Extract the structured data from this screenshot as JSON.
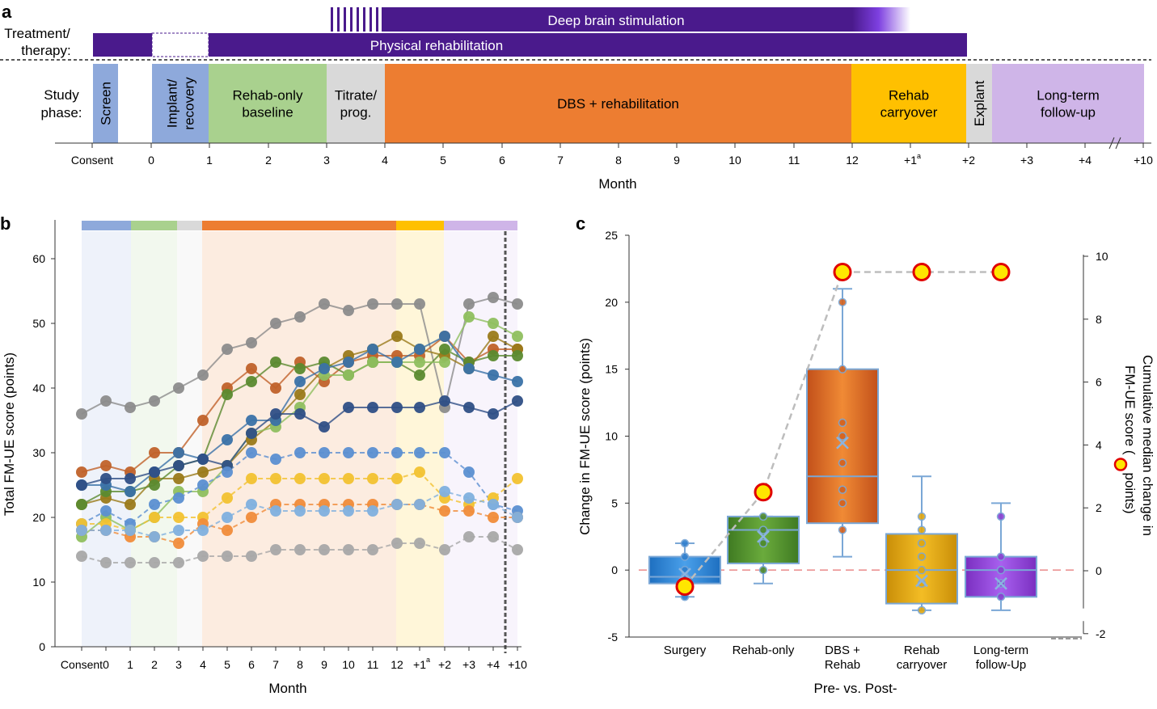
{
  "panel_labels": {
    "a": "a",
    "b": "b",
    "c": "c"
  },
  "colors": {
    "purple_dark": "#4a1a8c",
    "screen": "#8ea9db",
    "implant": "#8ea9db",
    "rehab_only": "#a9d18e",
    "titrate": "#d9d9d9",
    "dbs": "#ed7d31",
    "carryover": "#ffc000",
    "explant": "#d9d9d9",
    "followup": "#cfb5e8",
    "median_marker_fill": "#ffe600",
    "median_marker_stroke": "#e00000",
    "zero_line": "#e98a8a"
  },
  "panel_a": {
    "treatment_label_1": "Treatment/",
    "treatment_label_2": "therapy:",
    "bar_dbs": "Deep brain stimulation",
    "bar_rehab": "Physical rehabilitation",
    "phase_label_1": "Study",
    "phase_label_2": "phase:",
    "phases": [
      {
        "lines": [
          "Screen"
        ],
        "vertical": true
      },
      {
        "lines": [
          "Implant/",
          "recovery"
        ],
        "vertical": true
      },
      {
        "lines": [
          "Rehab-only",
          "baseline"
        ],
        "vertical": false
      },
      {
        "lines": [
          "Titrate/",
          "prog."
        ],
        "vertical": false
      },
      {
        "lines": [
          "DBS + rehabilitation"
        ],
        "vertical": false
      },
      {
        "lines": [
          "Rehab",
          "carryover"
        ],
        "vertical": false
      },
      {
        "lines": [
          "Explant"
        ],
        "vertical": true
      },
      {
        "lines": [
          "Long-term",
          "follow-up"
        ],
        "vertical": false
      }
    ],
    "ticks": [
      "Consent",
      "0",
      "1",
      "2",
      "3",
      "4",
      "5",
      "6",
      "7",
      "8",
      "9",
      "10",
      "11",
      "12",
      "+1",
      "+2",
      "+3",
      "+4",
      "+10"
    ],
    "tick_superscript": "a",
    "xlabel": "Month"
  },
  "chart_data": [
    {
      "type": "line",
      "panel": "b",
      "xlabel": "Month",
      "ylabel": "Total FM-UE score (points)",
      "ylim": [
        0,
        65
      ],
      "yticks": [
        "0",
        "10",
        "20",
        "30",
        "40",
        "50",
        "60"
      ],
      "categories": [
        "Consent",
        "0",
        "1",
        "2",
        "3",
        "4",
        "5",
        "6",
        "7",
        "8",
        "9",
        "10",
        "11",
        "12",
        "+1",
        "+2",
        "+3",
        "+4",
        "+10"
      ],
      "tick_superscript": "a",
      "grid": false,
      "series": [
        {
          "color": "#8c8c8c",
          "dashed": false,
          "values": [
            36,
            38,
            37,
            38,
            40,
            42,
            46,
            47,
            50,
            51,
            53,
            52,
            53,
            53,
            53,
            37,
            53,
            54,
            53
          ]
        },
        {
          "color": "#c0622a",
          "dashed": false,
          "values": [
            27,
            28,
            27,
            30,
            30,
            35,
            40,
            43,
            40,
            44,
            41,
            44,
            45,
            45,
            45,
            48,
            44,
            46,
            46
          ]
        },
        {
          "color": "#9a7a1a",
          "dashed": false,
          "values": [
            22,
            23,
            22,
            26,
            26,
            27,
            28,
            32,
            35,
            39,
            43,
            45,
            46,
            48,
            46,
            45,
            43,
            48,
            46
          ]
        },
        {
          "color": "#5b8a2f",
          "dashed": false,
          "values": [
            22,
            24,
            24,
            25,
            28,
            29,
            39,
            41,
            44,
            43,
            44,
            42,
            44,
            44,
            42,
            46,
            44,
            45,
            45
          ]
        },
        {
          "color": "#8fbf5f",
          "dashed": false,
          "values": [
            17,
            20,
            18,
            20,
            24,
            24,
            28,
            33,
            34,
            37,
            42,
            42,
            44,
            44,
            44,
            44,
            51,
            50,
            48
          ]
        },
        {
          "color": "#3a72a8",
          "dashed": false,
          "values": [
            25,
            25,
            24,
            27,
            30,
            29,
            32,
            35,
            35,
            41,
            43,
            44,
            46,
            44,
            46,
            48,
            43,
            42,
            41
          ]
        },
        {
          "color": "#2f4f86",
          "dashed": false,
          "values": [
            25,
            26,
            26,
            27,
            28,
            29,
            28,
            33,
            36,
            36,
            34,
            37,
            37,
            37,
            37,
            38,
            37,
            36,
            38
          ]
        },
        {
          "color": "#5b8fd1",
          "dashed": true,
          "values": [
            19,
            21,
            19,
            22,
            23,
            25,
            27,
            30,
            29,
            30,
            30,
            30,
            30,
            30,
            30,
            30,
            27,
            22,
            21
          ]
        },
        {
          "color": "#f2c230",
          "dashed": true,
          "values": [
            19,
            19,
            18,
            20,
            20,
            20,
            23,
            26,
            26,
            26,
            26,
            26,
            26,
            26,
            27,
            23,
            22,
            23,
            26
          ]
        },
        {
          "color": "#f08c3a",
          "dashed": true,
          "values": [
            18,
            18,
            17,
            17,
            16,
            19,
            18,
            20,
            22,
            22,
            22,
            22,
            22,
            22,
            22,
            21,
            21,
            20,
            20
          ]
        },
        {
          "color": "#7fb0de",
          "dashed": true,
          "values": [
            18,
            18,
            18,
            17,
            18,
            18,
            20,
            22,
            21,
            21,
            21,
            21,
            21,
            22,
            22,
            24,
            23,
            22,
            20
          ]
        },
        {
          "color": "#a8a8a8",
          "dashed": true,
          "values": [
            14,
            13,
            13,
            13,
            13,
            14,
            14,
            14,
            15,
            15,
            15,
            15,
            15,
            16,
            16,
            15,
            17,
            17,
            15
          ]
        }
      ]
    },
    {
      "type": "box",
      "panel": "c",
      "xlabel": "Pre- vs. Post-",
      "ylabel": "Change in FM-UE score (points)",
      "ylim": [
        -5,
        25
      ],
      "yticks": [
        "-5",
        "0",
        "5",
        "10",
        "15",
        "20",
        "25"
      ],
      "y2label": "Cumulative median change in FM-UE score (",
      "y2label_line1": "Cumulative median change in",
      "y2label_line2": "FM-UE score (",
      "y2label_end": " points)",
      "y2lim": [
        -2,
        10
      ],
      "y2ticks": [
        "-2",
        "0",
        "2",
        "4",
        "6",
        "8",
        "10"
      ],
      "categories": [
        {
          "lines": [
            "Surgery"
          ]
        },
        {
          "lines": [
            "Rehab-only"
          ]
        },
        {
          "lines": [
            "DBS +",
            "Rehab"
          ]
        },
        {
          "lines": [
            "Rehab",
            "carryover"
          ]
        },
        {
          "lines": [
            "Long-term",
            "follow-Up"
          ]
        }
      ],
      "boxes": [
        {
          "color": "#2f7fce",
          "q1": -1,
          "median": -0.5,
          "q3": 1,
          "min": -2,
          "max": 2,
          "mean": -0.3,
          "points": [
            2,
            1,
            0,
            -0.5,
            -1,
            -2
          ]
        },
        {
          "color": "#4e8a2e",
          "q1": 0.5,
          "median": 3,
          "q3": 4,
          "min": -1,
          "max": 4,
          "mean": 2.5,
          "points": [
            4,
            3,
            2,
            0
          ]
        },
        {
          "color": "#d4621f",
          "q1": 3.5,
          "median": 7,
          "q3": 15,
          "min": 1,
          "max": 21,
          "mean": 9.5,
          "points": [
            20,
            15,
            11,
            10,
            8,
            6,
            5,
            3
          ]
        },
        {
          "color": "#e0a60e",
          "q1": -2.5,
          "median": 0,
          "q3": 2.7,
          "min": -3,
          "max": 7,
          "mean": -0.8,
          "points": [
            4,
            3,
            2,
            1,
            0,
            -1,
            -3
          ]
        },
        {
          "color": "#8a3fd1",
          "q1": -2,
          "median": 0,
          "q3": 1,
          "min": -3,
          "max": 5,
          "mean": -1,
          "points": [
            4,
            1,
            0,
            -1,
            -2
          ]
        }
      ],
      "cumulative_median": [
        -0.5,
        2.5,
        9.5,
        9.5,
        9.5
      ]
    }
  ]
}
